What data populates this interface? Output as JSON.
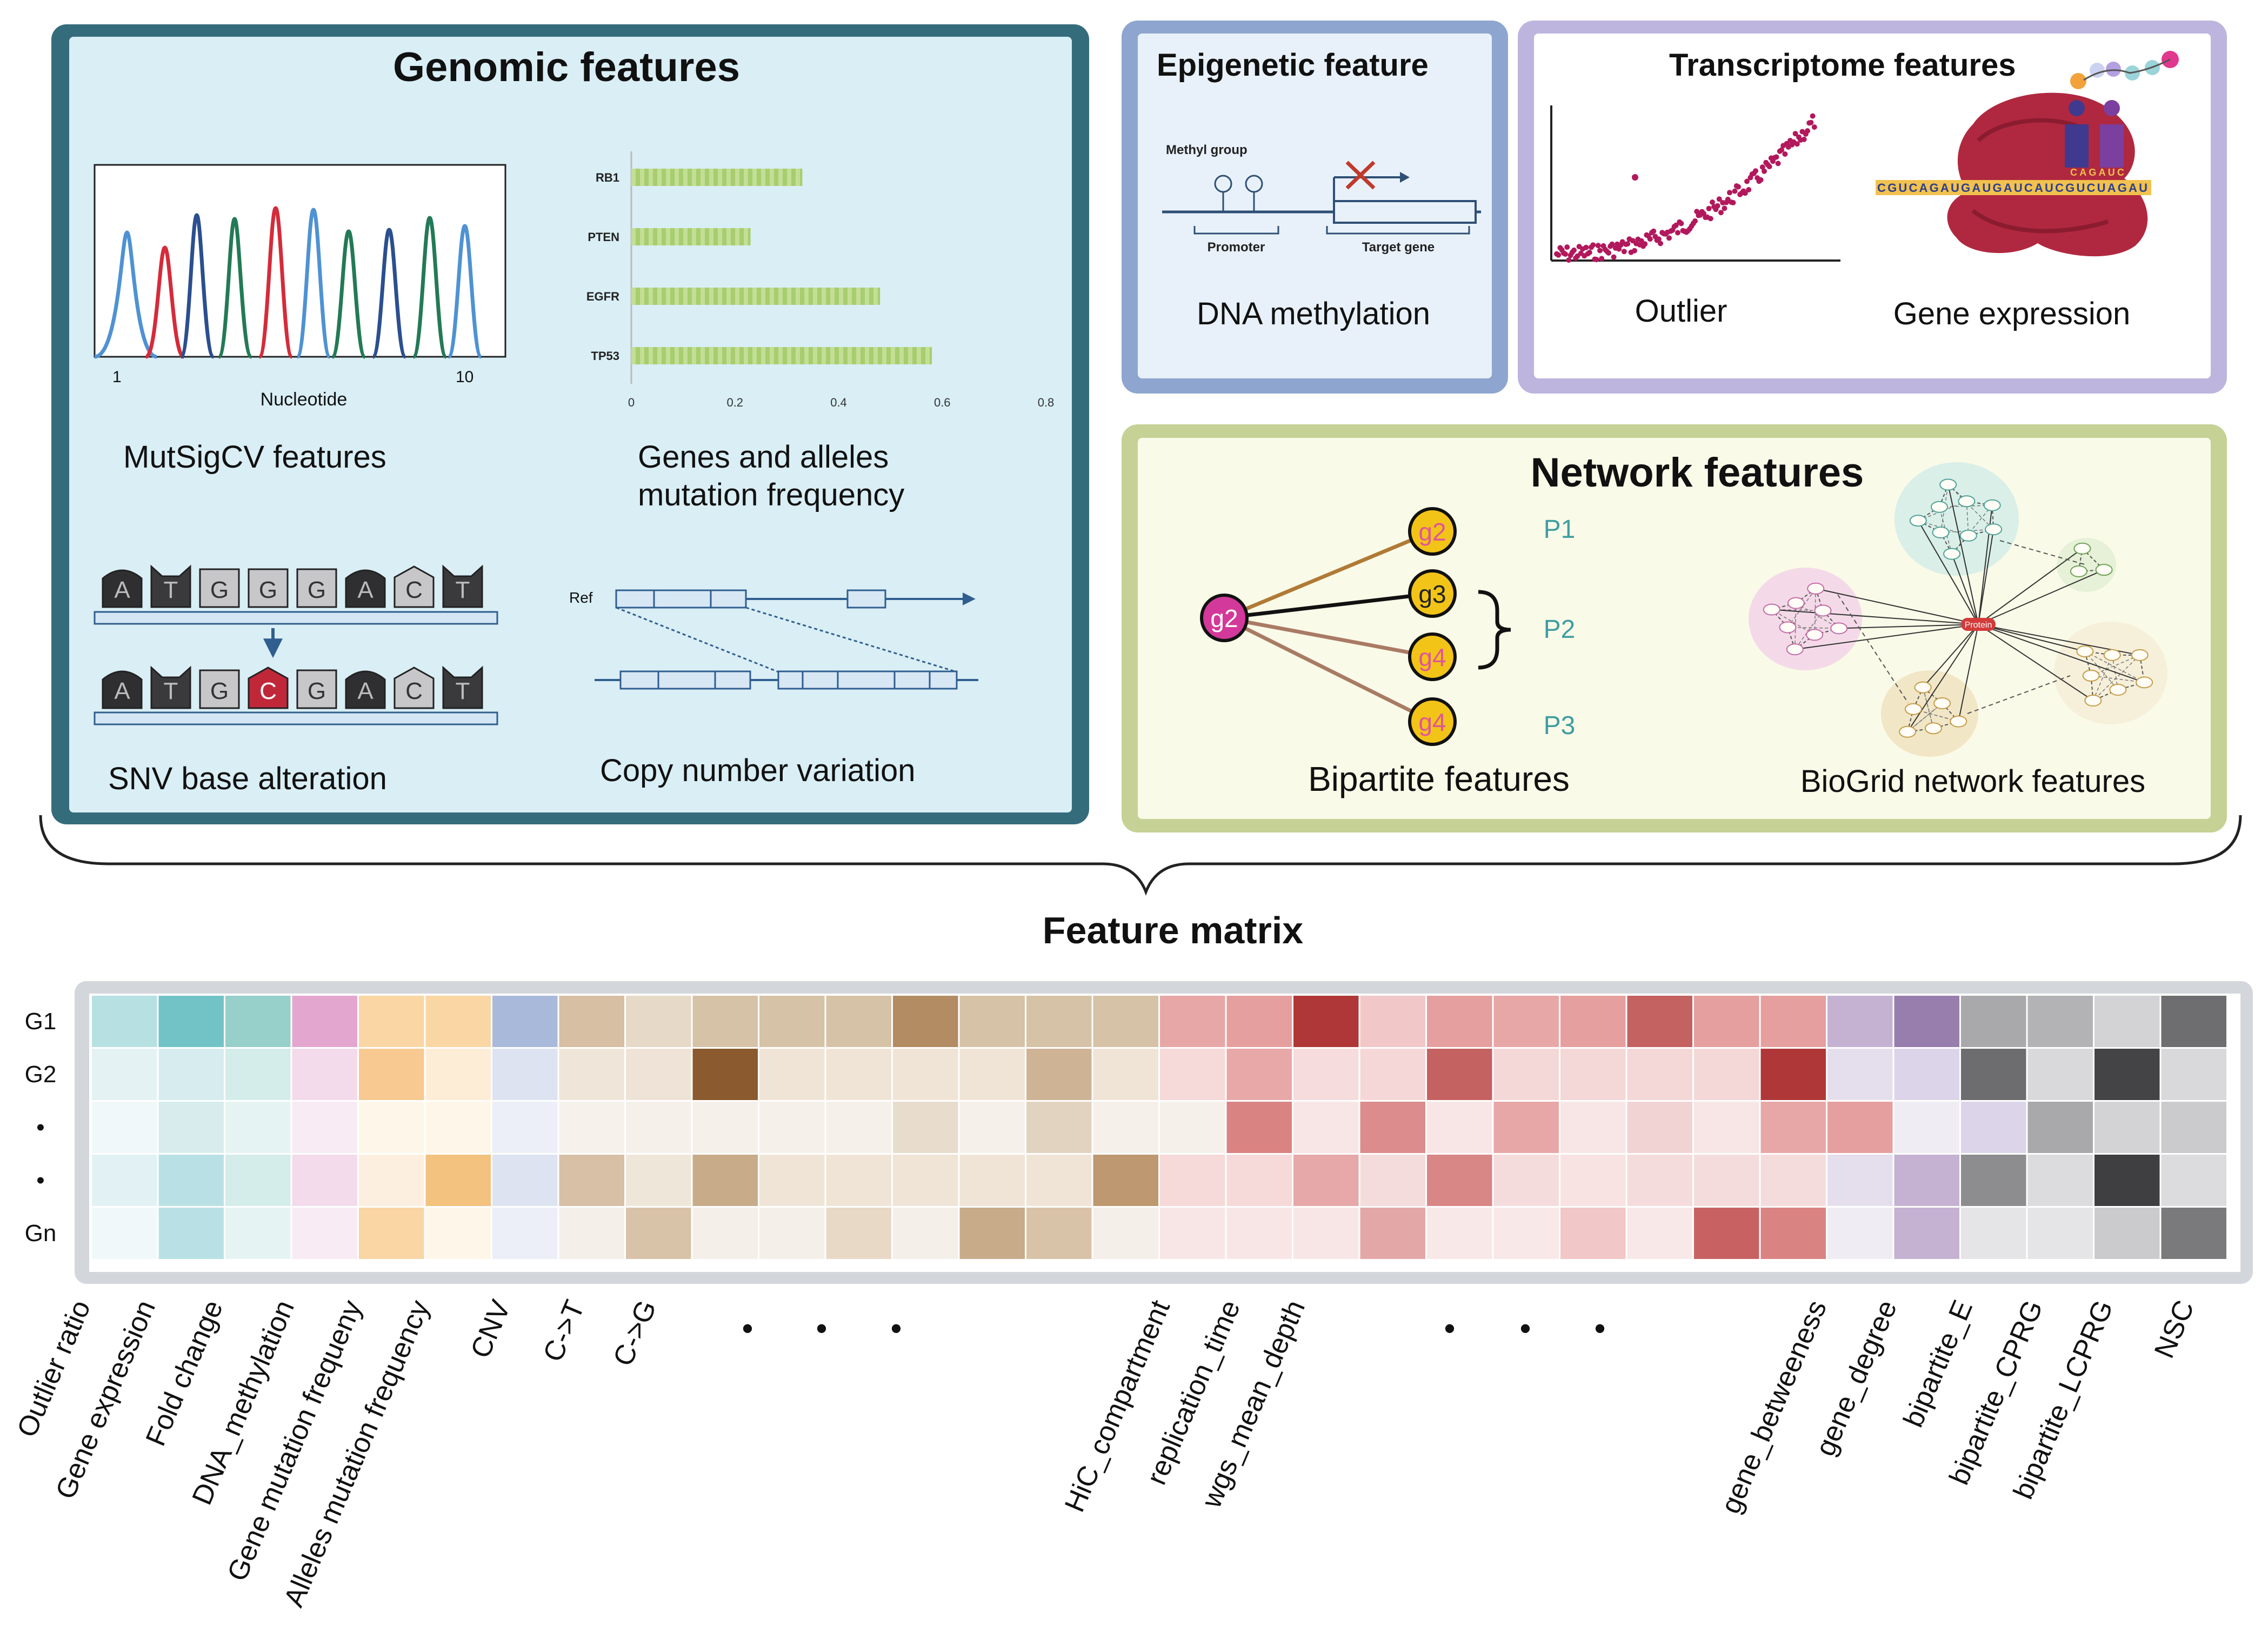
{
  "genomic": {
    "title": "Genomic features",
    "mutsig": {
      "label": "MutSigCV  features",
      "xlabel": "Nucleotide",
      "tick_start": "1",
      "tick_end": "10"
    },
    "freq_chart": {
      "label_line1": "Genes and alleles",
      "label_line2": "mutation frequency"
    },
    "snv": {
      "label": "SNV base alteration",
      "top_bases": [
        "A",
        "T",
        "G",
        "G",
        "G",
        "A",
        "C",
        "T"
      ],
      "bottom_bases": [
        "A",
        "T",
        "G",
        "C",
        "G",
        "A",
        "C",
        "T"
      ]
    },
    "cnv": {
      "label": "Copy number variation",
      "ref_label": "Ref"
    }
  },
  "chart_data": {
    "type": "bar",
    "orientation": "horizontal",
    "categories": [
      "RB1",
      "PTEN",
      "EGFR",
      "TP53"
    ],
    "values": [
      0.33,
      0.23,
      0.48,
      0.58
    ],
    "xlim": [
      0,
      0.8
    ],
    "ticks": [
      "0",
      "0.2",
      "0.4",
      "0.6",
      "0.8"
    ],
    "title": "",
    "xlabel": "",
    "ylabel": ""
  },
  "epigenetic": {
    "title": "Epigenetic feature",
    "methyl_label": "Methyl group",
    "promoter_label": "Promoter",
    "target_label": "Target gene",
    "caption": "DNA methylation"
  },
  "transcriptome": {
    "title": "Transcriptome features",
    "outlier_label": "Outlier",
    "expression_label": "Gene expression",
    "mrna_seq": "CGUCAGAUGAUGAUCAUCGUCUAGAU",
    "codon_seq": "CAGAUC"
  },
  "network": {
    "title": "Network features",
    "hub_node": "g2",
    "nodes": [
      "g2",
      "g3",
      "g4",
      "g4"
    ],
    "pathways": [
      "P1",
      "P2",
      "P3"
    ],
    "bipartite_label": "Bipartite features",
    "biogrid_label": "BioGrid network features",
    "center_label": "Protein"
  },
  "matrix": {
    "title": "Feature matrix",
    "row_labels": [
      "G1",
      "G2",
      "•",
      "•",
      "Gn"
    ],
    "col_labels": [
      "Outlier ratio",
      "Gene expression",
      "Fold change",
      "DNA_methylation",
      "Gene mutation frequeny",
      "Alleles mutation frequency",
      "CNV",
      "C->T",
      "C->G",
      "HiC_compartment",
      "replication_time",
      "wgs_mean_depth",
      "gene_betweeness",
      "gene_degree",
      "bipartite_E",
      "bipartite_CPRG",
      "bipartite_LCPRG",
      "NSC"
    ],
    "ellipsis": "•",
    "cells": [
      [
        "#b7e0e3",
        "#72c3c6",
        "#97cfca",
        "#e3a7cf",
        "#f9d6a4",
        "#f9d6a4",
        "#a9b9da",
        "#d7bfa4",
        "#e7d9c7",
        "#d6c2a6",
        "#d6c2a6",
        "#d6c2a6",
        "#b38c64",
        "#d6c2a6",
        "#d6c2a6",
        "#d6c2a6",
        "#e8a7a7",
        "#e59f9f",
        "#b03737",
        "#f1c7c7",
        "#e59f9f",
        "#e8a7a7",
        "#e59f9f",
        "#c46161",
        "#e59f9f",
        "#e59f9f",
        "#c5b2d2",
        "#987ead",
        "#a9a8ab",
        "#b3b2b5",
        "#d3d2d5",
        "#6e6e70"
      ],
      [
        "#e4f2f4",
        "#d7ecee",
        "#d4ecea",
        "#f3dbeb",
        "#f8c990",
        "#fdecd6",
        "#dde3f0",
        "#f0e5d9",
        "#eee3d6",
        "#8b5a2e",
        "#efe4d6",
        "#efe4d6",
        "#efe4d6",
        "#efe4d6",
        "#ceb395",
        "#efe4d6",
        "#f6d9d9",
        "#e8a8a8",
        "#f6dcdc",
        "#f5d7d7",
        "#c46161",
        "#f4d7d7",
        "#f4d7d7",
        "#f4d7d7",
        "#f4d7d7",
        "#b03737",
        "#e5deec",
        "#dcd5ea",
        "#6d6d6f",
        "#d9d8db",
        "#444446",
        "#d9d8db"
      ],
      [
        "#f1f8f9",
        "#d8ecee",
        "#e5f4f2",
        "#f8ebf4",
        "#fef6e8",
        "#fef6e8",
        "#eceff7",
        "#f6f1eb",
        "#f5f0ea",
        "#f5f0ea",
        "#f5f0ea",
        "#f5f0ea",
        "#e8dccd",
        "#f5f0ea",
        "#e2d3c0",
        "#f5f0ea",
        "#f5f0ea",
        "#da8383",
        "#f8e6e6",
        "#dc8c8c",
        "#f8e6e6",
        "#e8a7a7",
        "#f8e6e6",
        "#f2d3d3",
        "#f8e6e6",
        "#e8a7a7",
        "#e59f9f",
        "#efecf3",
        "#dcd5ea",
        "#a9a8ab",
        "#d3d2d5",
        "#cbcacd"
      ],
      [
        "#e2f2f4",
        "#b9e1e5",
        "#d4ecea",
        "#f3dbeb",
        "#fdefdf",
        "#f3c27e",
        "#dde3f0",
        "#d7c0a5",
        "#efe6da",
        "#c8ab89",
        "#efe4d6",
        "#efe4d6",
        "#efe4d6",
        "#efe4d6",
        "#efe4d6",
        "#be9870",
        "#f6d9d9",
        "#f6d9d9",
        "#e6a8a8",
        "#f5dcdc",
        "#d98686",
        "#f5dcdc",
        "#f8e2e2",
        "#f5dcdc",
        "#f5dcdc",
        "#f5dcdc",
        "#e5deec",
        "#c5b2d2",
        "#8d8c8f",
        "#dcdbde",
        "#3f3f41",
        "#dcdbde"
      ],
      [
        "#f1f8f9",
        "#b9e1e5",
        "#e5f4f2",
        "#f8ebf4",
        "#f9d6a4",
        "#fef6e8",
        "#eceff7",
        "#f4efe8",
        "#d9c3a8",
        "#f4efe8",
        "#f4efe8",
        "#e8d8c6",
        "#f4efe8",
        "#c8ab89",
        "#d9c3a8",
        "#f4efe8",
        "#f8e6e6",
        "#f8e6e6",
        "#f8e6e6",
        "#e4a7a7",
        "#f9e8e8",
        "#f9e8e8",
        "#f2c7c7",
        "#f9e8e8",
        "#c86262",
        "#da8383",
        "#efecf3",
        "#c5b2d2",
        "#e5e5e7",
        "#e5e5e7",
        "#cbcacd",
        "#7a7a7c"
      ]
    ]
  },
  "colors": {
    "genomic_border": "#356c7c",
    "genomic_bg": "#d9eef5",
    "epi_border": "#8ea6cf",
    "epi_bg": "#e8f1fa",
    "trans_border": "#bdb5de",
    "trans_bg": "#ffffff",
    "net_border": "#c6d196",
    "net_bg": "#fafae8",
    "matrix_frame": "#d3d6db",
    "node_yellow": "#f2c417",
    "node_magenta": "#d3399a",
    "pathway_teal": "#3f9ea0"
  }
}
